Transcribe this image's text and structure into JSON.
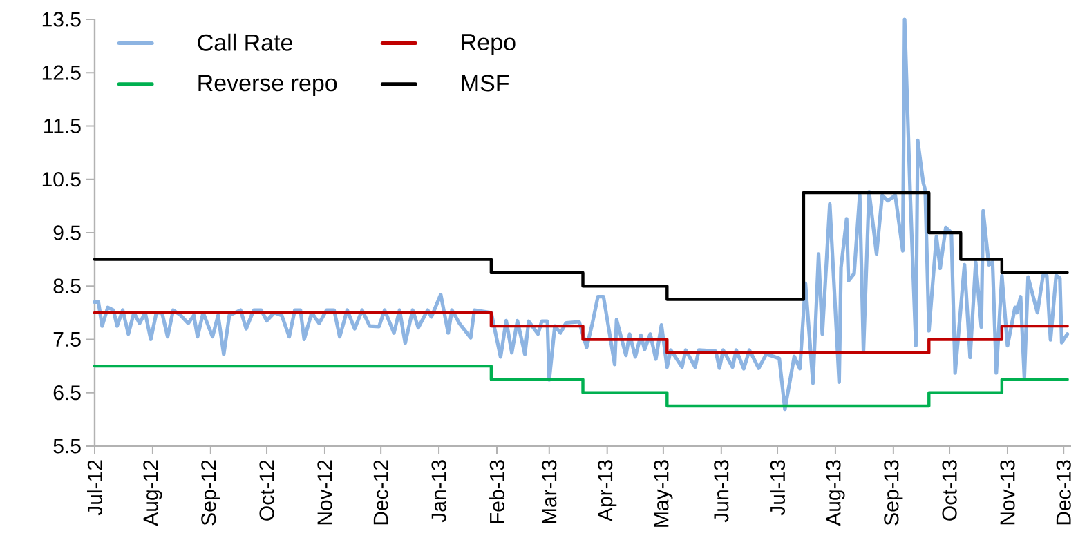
{
  "chart_data": {
    "type": "line",
    "legend": "top left",
    "xlim": [
      "2012-07-01",
      "2013-12-05"
    ],
    "xticks": [
      {
        "value": "2012-07-01",
        "label": "Jul-12"
      },
      {
        "value": "2012-08-01",
        "label": "Aug-12"
      },
      {
        "value": "2012-09-01",
        "label": "Sep-12"
      },
      {
        "value": "2012-10-01",
        "label": "Oct-12"
      },
      {
        "value": "2012-11-01",
        "label": "Nov-12"
      },
      {
        "value": "2012-12-01",
        "label": "Dec-12"
      },
      {
        "value": "2013-01-01",
        "label": "Jan-13"
      },
      {
        "value": "2013-02-01",
        "label": "Feb-13"
      },
      {
        "value": "2013-03-01",
        "label": "Mar-13"
      },
      {
        "value": "2013-04-01",
        "label": "Apr-13"
      },
      {
        "value": "2013-05-01",
        "label": "May-13"
      },
      {
        "value": "2013-06-01",
        "label": "Jun-13"
      },
      {
        "value": "2013-07-01",
        "label": "Jul-13"
      },
      {
        "value": "2013-08-01",
        "label": "Aug-13"
      },
      {
        "value": "2013-09-01",
        "label": "Sep-13"
      },
      {
        "value": "2013-10-01",
        "label": "Oct-13"
      },
      {
        "value": "2013-11-01",
        "label": "Nov-13"
      },
      {
        "value": "2013-12-01",
        "label": "Dec-13"
      }
    ],
    "ylim": [
      5.5,
      13.5
    ],
    "yticks": [
      5.5,
      6.5,
      7.5,
      8.5,
      9.5,
      10.5,
      11.5,
      12.5,
      13.5
    ],
    "series": [
      {
        "name": "Call Rate",
        "color": "#8db4e2",
        "x": [
          "2012-07-01",
          "2012-07-03",
          "2012-07-05",
          "2012-07-08",
          "2012-07-11",
          "2012-07-13",
          "2012-07-16",
          "2012-07-19",
          "2012-07-22",
          "2012-07-25",
          "2012-07-28",
          "2012-07-31",
          "2012-08-03",
          "2012-08-06",
          "2012-08-09",
          "2012-08-12",
          "2012-08-16",
          "2012-08-20",
          "2012-08-23",
          "2012-08-25",
          "2012-08-28",
          "2012-09-02",
          "2012-09-05",
          "2012-09-08",
          "2012-09-11",
          "2012-09-14",
          "2012-09-17",
          "2012-09-20",
          "2012-09-24",
          "2012-09-28",
          "2012-10-01",
          "2012-10-05",
          "2012-10-09",
          "2012-10-13",
          "2012-10-16",
          "2012-10-19",
          "2012-10-21",
          "2012-10-25",
          "2012-10-29",
          "2012-11-02",
          "2012-11-06",
          "2012-11-09",
          "2012-11-13",
          "2012-11-17",
          "2012-11-21",
          "2012-11-25",
          "2012-11-30",
          "2012-12-03",
          "2012-12-08",
          "2012-12-11",
          "2012-12-14",
          "2012-12-18",
          "2012-12-21",
          "2012-12-26",
          "2012-12-28",
          "2013-01-02",
          "2013-01-06",
          "2013-01-08",
          "2013-01-12",
          "2013-01-18",
          "2013-01-20",
          "2013-01-29",
          "2013-02-03",
          "2013-02-06",
          "2013-02-09",
          "2013-02-12",
          "2013-02-16",
          "2013-02-18",
          "2013-02-23",
          "2013-02-25",
          "2013-02-28",
          "2013-03-01",
          "2013-03-04",
          "2013-03-07",
          "2013-03-10",
          "2013-03-17",
          "2013-03-21",
          "2013-03-24",
          "2013-03-27",
          "2013-03-30",
          "2013-04-05",
          "2013-04-06",
          "2013-04-11",
          "2013-04-13",
          "2013-04-16",
          "2013-04-19",
          "2013-04-21",
          "2013-04-24",
          "2013-04-27",
          "2013-04-30",
          "2013-05-03",
          "2013-05-05",
          "2013-05-11",
          "2013-05-13",
          "2013-05-18",
          "2013-05-20",
          "2013-05-29",
          "2013-05-31",
          "2013-06-02",
          "2013-06-07",
          "2013-06-09",
          "2013-06-13",
          "2013-06-16",
          "2013-06-21",
          "2013-06-25",
          "2013-06-29",
          "2013-07-02",
          "2013-07-05",
          "2013-07-10",
          "2013-07-13",
          "2013-07-16",
          "2013-07-20",
          "2013-07-23",
          "2013-07-25",
          "2013-07-29",
          "2013-08-03",
          "2013-08-04",
          "2013-08-07",
          "2013-08-08",
          "2013-08-11",
          "2013-08-14",
          "2013-08-16",
          "2013-08-19",
          "2013-08-23",
          "2013-08-26",
          "2013-08-29",
          "2013-09-02",
          "2013-09-06",
          "2013-09-07",
          "2013-09-10",
          "2013-09-13",
          "2013-09-14",
          "2013-09-17",
          "2013-09-18",
          "2013-09-20",
          "2013-09-24",
          "2013-09-26",
          "2013-09-29",
          "2013-10-02",
          "2013-10-04",
          "2013-10-09",
          "2013-10-12",
          "2013-10-15",
          "2013-10-18",
          "2013-10-19",
          "2013-10-22",
          "2013-10-24",
          "2013-10-26",
          "2013-10-29",
          "2013-11-01",
          "2013-11-05",
          "2013-11-06",
          "2013-11-08",
          "2013-11-10",
          "2013-11-12",
          "2013-11-17",
          "2013-11-20",
          "2013-11-22",
          "2013-11-24",
          "2013-11-27",
          "2013-11-29",
          "2013-11-30",
          "2013-12-03"
        ],
        "values": [
          8.2,
          8.2,
          7.75,
          8.1,
          8.05,
          7.75,
          8.05,
          7.6,
          8.0,
          7.8,
          8.0,
          7.5,
          8.0,
          8.0,
          7.55,
          8.05,
          7.95,
          7.8,
          7.95,
          7.55,
          8.0,
          7.55,
          7.95,
          7.22,
          7.95,
          8.0,
          8.05,
          7.7,
          8.05,
          8.05,
          7.85,
          8.0,
          7.95,
          7.55,
          8.05,
          8.05,
          7.5,
          8.0,
          7.8,
          8.05,
          8.05,
          7.55,
          8.05,
          7.7,
          8.05,
          7.75,
          7.74,
          8.05,
          7.62,
          8.05,
          7.43,
          8.05,
          7.72,
          8.05,
          7.92,
          8.34,
          7.62,
          8.05,
          7.8,
          7.53,
          8.05,
          8.0,
          7.17,
          7.85,
          7.25,
          7.85,
          7.22,
          7.84,
          7.6,
          7.84,
          7.84,
          6.74,
          7.75,
          7.62,
          7.81,
          7.83,
          7.35,
          7.79,
          8.3,
          8.3,
          7.03,
          7.87,
          7.2,
          7.6,
          7.17,
          7.58,
          7.31,
          7.6,
          7.13,
          7.77,
          6.98,
          7.3,
          6.98,
          7.3,
          6.98,
          7.3,
          7.28,
          6.96,
          7.3,
          6.98,
          7.3,
          6.95,
          7.3,
          6.96,
          7.22,
          7.18,
          7.14,
          6.19,
          7.18,
          6.95,
          8.55,
          6.68,
          9.1,
          7.6,
          10.04,
          6.7,
          8.85,
          9.76,
          8.6,
          8.73,
          10.21,
          7.28,
          10.27,
          9.1,
          10.2,
          10.1,
          10.2,
          9.16,
          13.5,
          10.2,
          7.38,
          11.23,
          10.43,
          10.3,
          7.66,
          9.43,
          8.83,
          9.6,
          9.5,
          6.87,
          8.9,
          7.16,
          8.95,
          7.73,
          9.91,
          8.9,
          8.95,
          6.87,
          8.7,
          7.38,
          8.1,
          8.0,
          8.3,
          6.79,
          8.67,
          8.0,
          8.7,
          8.7,
          7.49,
          8.7,
          8.65,
          7.44,
          7.6
        ]
      },
      {
        "name": "Repo",
        "color": "#c00000",
        "type": "step",
        "x": [
          "2012-07-01",
          "2013-01-29",
          "2013-03-19",
          "2013-05-03",
          "2013-09-20",
          "2013-10-29",
          "2013-12-03"
        ],
        "values": [
          8.0,
          7.75,
          7.5,
          7.25,
          7.5,
          7.75,
          7.75
        ]
      },
      {
        "name": "Reverse repo",
        "color": "#00b050",
        "type": "step",
        "x": [
          "2012-07-01",
          "2013-01-29",
          "2013-03-19",
          "2013-05-03",
          "2013-09-20",
          "2013-10-29",
          "2013-12-03"
        ],
        "values": [
          7.0,
          6.75,
          6.5,
          6.25,
          6.5,
          6.75,
          6.75
        ]
      },
      {
        "name": "MSF",
        "color": "#000000",
        "type": "step",
        "x": [
          "2012-07-01",
          "2013-01-29",
          "2013-03-19",
          "2013-05-03",
          "2013-07-15",
          "2013-09-20",
          "2013-10-07",
          "2013-10-29",
          "2013-12-03"
        ],
        "values": [
          9.0,
          8.75,
          8.5,
          8.25,
          10.25,
          9.5,
          9.0,
          8.75,
          8.75
        ]
      }
    ]
  }
}
